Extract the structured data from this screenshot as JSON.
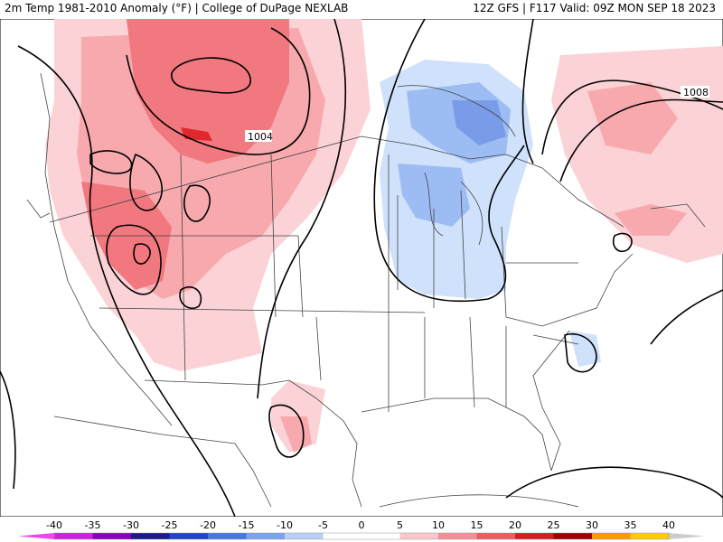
{
  "header": {
    "title_left": "2m Temp 1981-2010 Anomaly (°F) | College of DuPage NEXLAB",
    "title_right": "12Z GFS | F117 Valid: 09Z MON SEP 18 2023"
  },
  "map": {
    "isobar_labels": [
      "1004",
      "1008"
    ]
  },
  "colorbar": {
    "ticks": [
      "-40",
      "-35",
      "-30",
      "-25",
      "-20",
      "-15",
      "-10",
      "-5",
      "0",
      "5",
      "10",
      "15",
      "20",
      "25",
      "30",
      "35",
      "40"
    ],
    "colors": [
      "#ee44ee",
      "#cc22dd",
      "#8800bb",
      "#1a1a8c",
      "#2244cc",
      "#4477e0",
      "#7aa3ef",
      "#b8d0f8",
      "#ffffff",
      "#ffffff",
      "#fbc5cc",
      "#f68e97",
      "#ee5c62",
      "#d22020",
      "#a00000",
      "#ff9900",
      "#ffcc00",
      "#fff0a0",
      "#cccccc"
    ]
  },
  "colors": {
    "warm_light": "#fbd2d6",
    "warm_mid": "#f7a9ae",
    "warm_strong": "#f0787e",
    "warm_peak": "#e0282e",
    "cool_light": "#cfe1fb",
    "cool_mid": "#9cbcf3",
    "cool_strong": "#7a9ce8"
  }
}
